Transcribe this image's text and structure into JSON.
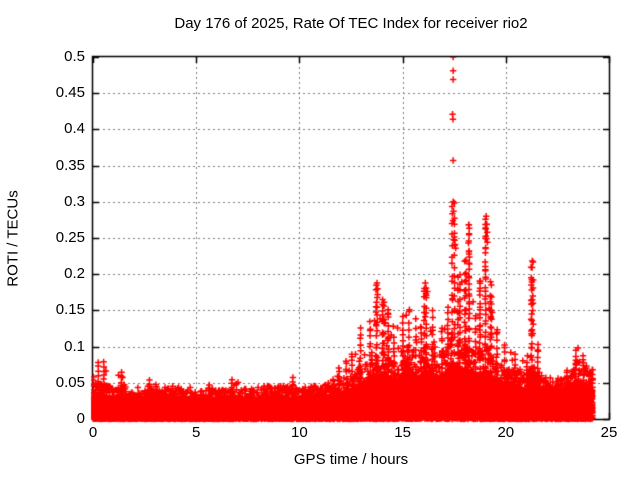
{
  "chart_data": {
    "type": "scatter",
    "title": "Day 176 of 2025, Rate Of TEC Index for receiver rio2",
    "xlabel": "GPS time / hours",
    "ylabel": "ROTI / TECUs",
    "xlim": [
      0,
      25
    ],
    "ylim": [
      0,
      0.5
    ],
    "xticks": [
      0,
      5,
      10,
      15,
      20,
      25
    ],
    "xtick_labels": [
      "0",
      "5",
      "10",
      "15",
      "20",
      "25"
    ],
    "yticks": [
      0,
      0.05,
      0.1,
      0.15,
      0.2,
      0.25,
      0.3,
      0.35,
      0.4,
      0.45,
      0.5
    ],
    "ytick_labels": [
      "0",
      "0.05",
      "0.1",
      "0.15",
      "0.2",
      "0.25",
      "0.3",
      "0.35",
      "0.4",
      "0.45",
      "0.5"
    ],
    "grid": true,
    "grid_style": "dashed",
    "legend": null,
    "marker": {
      "shape": "plus",
      "size": 7,
      "color": "#ff0000"
    },
    "grid_color": "#7f7f7f",
    "axis_color": "#000000",
    "background_color": "#ffffff",
    "data_time_range": [
      0,
      24.2
    ],
    "points_per_epoch": 7,
    "epoch_hours": 0.008333,
    "seed": 1760,
    "envelope": [
      [
        0.0,
        0.032,
        0.06
      ],
      [
        0.3,
        0.032,
        0.08
      ],
      [
        0.6,
        0.03,
        0.085
      ],
      [
        1.0,
        0.028,
        0.05
      ],
      [
        1.3,
        0.03,
        0.065
      ],
      [
        1.7,
        0.026,
        0.045
      ],
      [
        2.2,
        0.026,
        0.05
      ],
      [
        2.7,
        0.028,
        0.055
      ],
      [
        3.2,
        0.026,
        0.045
      ],
      [
        3.7,
        0.03,
        0.055
      ],
      [
        4.2,
        0.028,
        0.05
      ],
      [
        4.7,
        0.026,
        0.045
      ],
      [
        5.2,
        0.026,
        0.05
      ],
      [
        5.7,
        0.028,
        0.052
      ],
      [
        6.2,
        0.026,
        0.045
      ],
      [
        6.7,
        0.028,
        0.055
      ],
      [
        7.2,
        0.028,
        0.05
      ],
      [
        7.7,
        0.026,
        0.048
      ],
      [
        8.2,
        0.03,
        0.052
      ],
      [
        8.7,
        0.028,
        0.046
      ],
      [
        9.2,
        0.03,
        0.055
      ],
      [
        9.7,
        0.028,
        0.06
      ],
      [
        10.2,
        0.028,
        0.048
      ],
      [
        10.7,
        0.03,
        0.052
      ],
      [
        11.2,
        0.028,
        0.05
      ],
      [
        11.6,
        0.03,
        0.058
      ],
      [
        11.9,
        0.034,
        0.075
      ],
      [
        12.2,
        0.036,
        0.085
      ],
      [
        12.6,
        0.04,
        0.09
      ],
      [
        13.0,
        0.048,
        0.13
      ],
      [
        13.4,
        0.052,
        0.14
      ],
      [
        13.75,
        0.058,
        0.19
      ],
      [
        14.05,
        0.058,
        0.17
      ],
      [
        14.3,
        0.054,
        0.155
      ],
      [
        14.6,
        0.05,
        0.12
      ],
      [
        15.0,
        0.062,
        0.15
      ],
      [
        15.3,
        0.068,
        0.16
      ],
      [
        15.6,
        0.062,
        0.14
      ],
      [
        15.85,
        0.058,
        0.13
      ],
      [
        16.1,
        0.066,
        0.19
      ],
      [
        16.5,
        0.062,
        0.15
      ],
      [
        16.9,
        0.058,
        0.13
      ],
      [
        17.2,
        0.065,
        0.16
      ],
      [
        17.45,
        0.08,
        0.3
      ],
      [
        17.7,
        0.07,
        0.2
      ],
      [
        18.0,
        0.068,
        0.22
      ],
      [
        18.25,
        0.068,
        0.27
      ],
      [
        18.5,
        0.06,
        0.15
      ],
      [
        18.8,
        0.062,
        0.2
      ],
      [
        19.05,
        0.068,
        0.28
      ],
      [
        19.3,
        0.06,
        0.19
      ],
      [
        19.6,
        0.055,
        0.13
      ],
      [
        20.0,
        0.048,
        0.1
      ],
      [
        20.5,
        0.044,
        0.09
      ],
      [
        21.0,
        0.04,
        0.08
      ],
      [
        21.3,
        0.048,
        0.22
      ],
      [
        21.6,
        0.042,
        0.11
      ],
      [
        22.0,
        0.034,
        0.06
      ],
      [
        22.5,
        0.034,
        0.06
      ],
      [
        23.0,
        0.038,
        0.07
      ],
      [
        23.45,
        0.052,
        0.1
      ],
      [
        23.8,
        0.048,
        0.09
      ],
      [
        24.2,
        0.04,
        0.07
      ]
    ],
    "outliers": [
      [
        17.45,
        0.5
      ],
      [
        17.45,
        0.481
      ],
      [
        17.45,
        0.469
      ],
      [
        17.42,
        0.421
      ],
      [
        17.44,
        0.414
      ],
      [
        17.45,
        0.357
      ],
      [
        17.45,
        0.3
      ],
      [
        17.47,
        0.287
      ],
      [
        17.44,
        0.274
      ],
      [
        17.52,
        0.247
      ],
      [
        17.54,
        0.241
      ],
      [
        17.57,
        0.236
      ],
      [
        18.2,
        0.268
      ],
      [
        18.22,
        0.256
      ],
      [
        18.19,
        0.243
      ],
      [
        18.21,
        0.231
      ],
      [
        19.05,
        0.28
      ],
      [
        19.08,
        0.269
      ],
      [
        19.1,
        0.258
      ],
      [
        19.06,
        0.249
      ],
      [
        19.11,
        0.244
      ],
      [
        21.32,
        0.217
      ],
      [
        21.33,
        0.192
      ],
      [
        21.32,
        0.181
      ],
      [
        21.31,
        0.17
      ],
      [
        21.32,
        0.16
      ],
      [
        21.3,
        0.15
      ],
      [
        21.33,
        0.131
      ],
      [
        21.31,
        0.118
      ],
      [
        13.76,
        0.188
      ],
      [
        13.79,
        0.172
      ],
      [
        16.1,
        0.188
      ],
      [
        16.13,
        0.173
      ],
      [
        12.55,
        0.086
      ],
      [
        14.55,
        0.128
      ],
      [
        23.5,
        0.098
      ]
    ]
  }
}
